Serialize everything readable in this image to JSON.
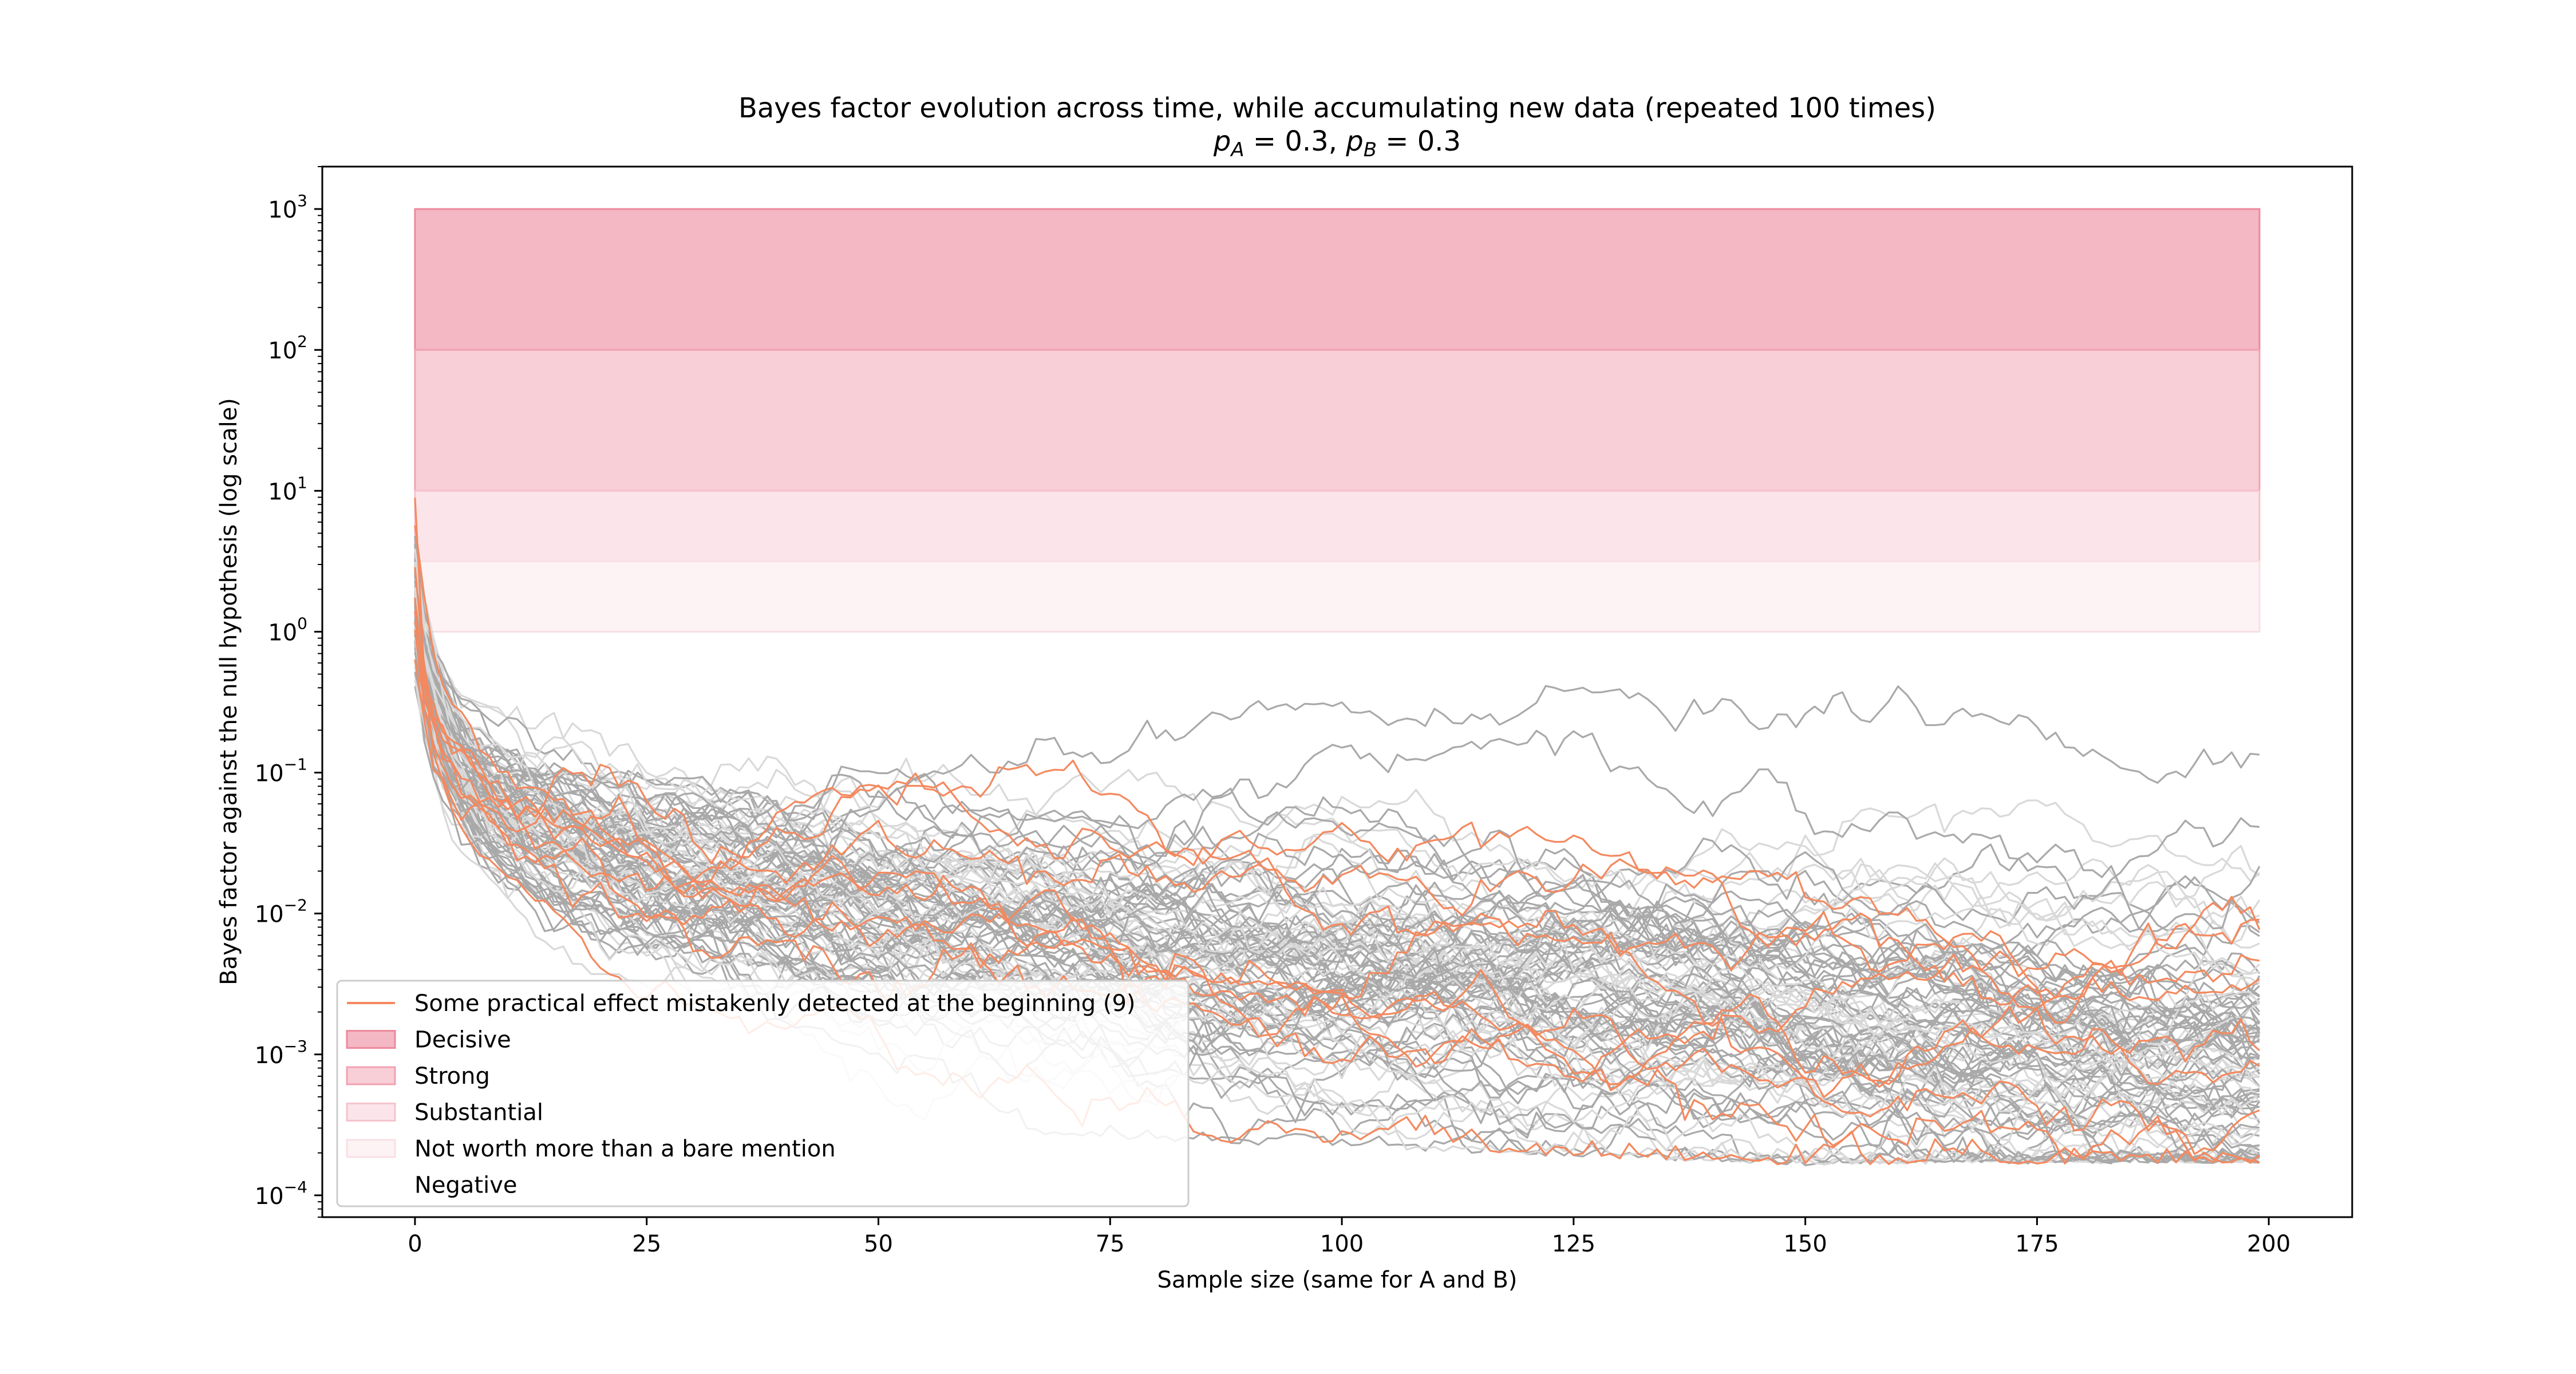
{
  "chart_data": {
    "type": "line",
    "title": "Bayes factor evolution across time, while accumulating new data (repeated 100 times)",
    "subtitle": {
      "pa_symbol": "p",
      "pa_sub": "A",
      "pa_value": " = 0.3, ",
      "pb_symbol": "p",
      "pb_sub": "B",
      "pb_value": " = 0.3"
    },
    "xlabel": "Sample size (same for A and B)",
    "ylabel": "Bayes factor against the null hypothesis (log scale)",
    "xlim": [
      -10,
      209
    ],
    "ylim": [
      7e-05,
      2000
    ],
    "yscale": "log",
    "grid": false,
    "legend_position": "lower-left",
    "x_ticks": [
      {
        "value": 0,
        "label": "0"
      },
      {
        "value": 25,
        "label": "25"
      },
      {
        "value": 50,
        "label": "50"
      },
      {
        "value": 75,
        "label": "75"
      },
      {
        "value": 100,
        "label": "100"
      },
      {
        "value": 125,
        "label": "125"
      },
      {
        "value": 150,
        "label": "150"
      },
      {
        "value": 175,
        "label": "175"
      },
      {
        "value": 200,
        "label": "200"
      }
    ],
    "y_ticks": [
      {
        "value": 0.0001,
        "base": "10",
        "exp": "−4"
      },
      {
        "value": 0.001,
        "base": "10",
        "exp": "−3"
      },
      {
        "value": 0.01,
        "base": "10",
        "exp": "−2"
      },
      {
        "value": 0.1,
        "base": "10",
        "exp": "−1"
      },
      {
        "value": 1,
        "base": "10",
        "exp": "0"
      },
      {
        "value": 10,
        "base": "10",
        "exp": "1"
      },
      {
        "value": 100,
        "base": "10",
        "exp": "2"
      },
      {
        "value": 1000,
        "base": "10",
        "exp": "3"
      }
    ],
    "bands": [
      {
        "name": "Decisive",
        "y0": 100,
        "y1": 1000,
        "x0": 0,
        "x1": 199,
        "fill": "#f4b8c4",
        "edge": "#ec8a9c"
      },
      {
        "name": "Strong",
        "y0": 10,
        "y1": 100,
        "x0": 0,
        "x1": 199,
        "fill": "#f8ced7",
        "edge": "#f0a2b1"
      },
      {
        "name": "Substantial",
        "y0": 3.16,
        "y1": 10,
        "x0": 0,
        "x1": 199,
        "fill": "#fbe5ea",
        "edge": "#f5c3cd"
      },
      {
        "name": "Not worth more than a bare mention",
        "y0": 1,
        "y1": 3.16,
        "x0": 0,
        "x1": 199,
        "fill": "#fdf2f4",
        "edge": "#f9e0e5"
      },
      {
        "name": "Negative",
        "y0": null,
        "y1": null,
        "fill": "#ffffff",
        "edge": "#ffffff"
      }
    ],
    "series_summary": {
      "total_runs": 100,
      "highlighted_runs": 9,
      "highlight_label": "Some practical effect mistakenly detected at the beginning (9)",
      "highlight_color": "#f4895f",
      "other_color": "#a9a9a9",
      "other_color_light": "#d9d9d9",
      "x_range": [
        0,
        199
      ],
      "typical_start": 0.5,
      "highlighted_peaks": [
        22,
        9.5,
        8,
        3.5,
        3,
        2.5,
        2,
        1.8,
        1.5
      ],
      "end_value_range": [
        0.00015,
        0.025
      ],
      "median_path": [
        {
          "x": 0,
          "y": 0.6
        },
        {
          "x": 10,
          "y": 0.09
        },
        {
          "x": 25,
          "y": 0.035
        },
        {
          "x": 50,
          "y": 0.012
        },
        {
          "x": 75,
          "y": 0.005
        },
        {
          "x": 100,
          "y": 0.0025
        },
        {
          "x": 125,
          "y": 0.0013
        },
        {
          "x": 150,
          "y": 0.0008
        },
        {
          "x": 175,
          "y": 0.0005
        },
        {
          "x": 199,
          "y": 0.0003
        }
      ]
    }
  },
  "legend": {
    "entries": [
      {
        "label": "Some practical effect mistakenly detected at the beginning (9)",
        "kind": "line",
        "color": "#f4895f"
      },
      {
        "label": "Decisive",
        "kind": "patch",
        "fill": "#f4b8c4",
        "edge": "#ec8a9c"
      },
      {
        "label": "Strong",
        "kind": "patch",
        "fill": "#f8ced7",
        "edge": "#f0a2b1"
      },
      {
        "label": "Substantial",
        "kind": "patch",
        "fill": "#fbe5ea",
        "edge": "#f5c3cd"
      },
      {
        "label": "Not worth more than a bare mention",
        "kind": "patch",
        "fill": "#fdf2f4",
        "edge": "#f9e0e5"
      },
      {
        "label": "Negative",
        "kind": "patch",
        "fill": "#ffffff",
        "edge": "#ffffff"
      }
    ]
  }
}
